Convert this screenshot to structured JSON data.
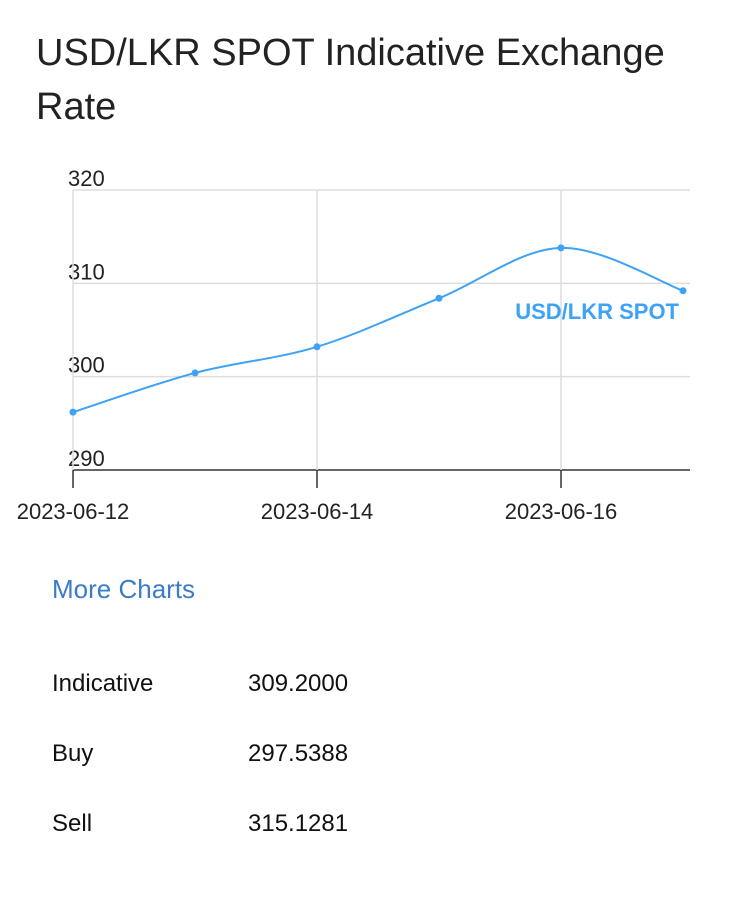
{
  "header": {
    "title": "USD/LKR SPOT Indicative Exchange Rate"
  },
  "chart_data": {
    "type": "line",
    "x": [
      "2023-06-12",
      "2023-06-13",
      "2023-06-14",
      "2023-06-15",
      "2023-06-16",
      "2023-06-17"
    ],
    "series": [
      {
        "name": "USD/LKR SPOT",
        "color": "#3ea2f5",
        "values": [
          296.2,
          300.4,
          303.2,
          308.4,
          313.8,
          309.2
        ]
      }
    ],
    "xticks": [
      "2023-06-12",
      "2023-06-14",
      "2023-06-16"
    ],
    "ylim": [
      290,
      320
    ],
    "yticks": [
      290,
      300,
      310,
      320
    ],
    "grid": true
  },
  "link": "More Charts",
  "table": {
    "rows": [
      [
        "Indicative",
        "309.2000"
      ],
      [
        "Buy",
        "297.5388"
      ],
      [
        "Sell",
        "315.1281"
      ]
    ]
  }
}
